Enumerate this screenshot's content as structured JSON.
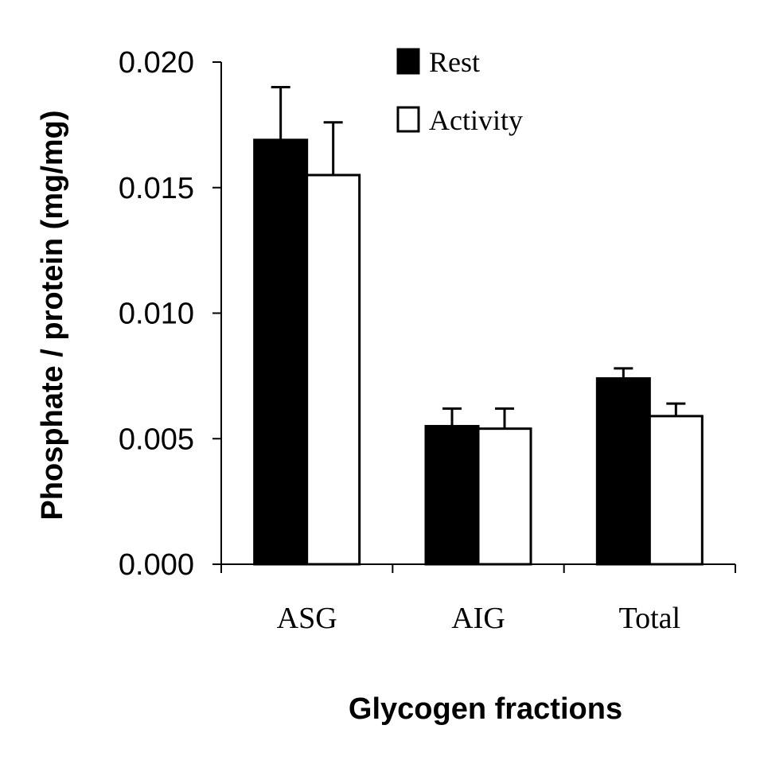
{
  "chart_data": {
    "type": "bar",
    "title": "",
    "xlabel": "Glycogen fractions",
    "ylabel": "Phosphate / protein (mg/mg)",
    "categories": [
      "ASG",
      "AIG",
      "Total"
    ],
    "series": [
      {
        "name": "Rest",
        "values": [
          0.0169,
          0.0055,
          0.0074
        ],
        "errors": [
          0.0021,
          0.0007,
          0.0004
        ],
        "fill": "#000000"
      },
      {
        "name": "Activity",
        "values": [
          0.0155,
          0.0054,
          0.0059
        ],
        "errors": [
          0.0021,
          0.0008,
          0.0005
        ],
        "fill": "#ffffff"
      }
    ],
    "ylim": [
      0,
      0.02
    ],
    "yticks": [
      "0.000",
      "0.005",
      "0.010",
      "0.015",
      "0.020"
    ],
    "grid": false,
    "legend": "top-center"
  }
}
